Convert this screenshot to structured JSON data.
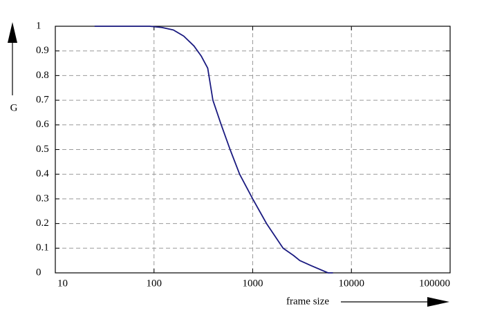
{
  "chart_data": {
    "type": "line",
    "log_x": true,
    "grid": true,
    "xlabel": "frame size",
    "ylabel": "G",
    "xlim": [
      10,
      100000
    ],
    "xticks": [
      10,
      100,
      1000,
      10000,
      100000
    ],
    "ylim": [
      0,
      1
    ],
    "yticks": [
      0,
      0.1,
      0.2,
      0.3,
      0.4,
      0.5,
      0.6,
      0.7,
      0.8,
      0.9,
      1
    ],
    "series": [
      {
        "color": "#1a1a80",
        "x": [
          25,
          50,
          90,
          120,
          157,
          200,
          254,
          300,
          350,
          395,
          480,
          590,
          737,
          1000,
          1380,
          2030,
          2600,
          3000,
          3870,
          5800,
          6500
        ],
        "values": [
          1,
          1,
          1,
          0.995,
          0.985,
          0.96,
          0.92,
          0.88,
          0.83,
          0.7,
          0.6,
          0.5,
          0.4,
          0.3,
          0.2,
          0.1,
          0.07,
          0.05,
          0.03,
          0,
          0
        ]
      }
    ]
  }
}
